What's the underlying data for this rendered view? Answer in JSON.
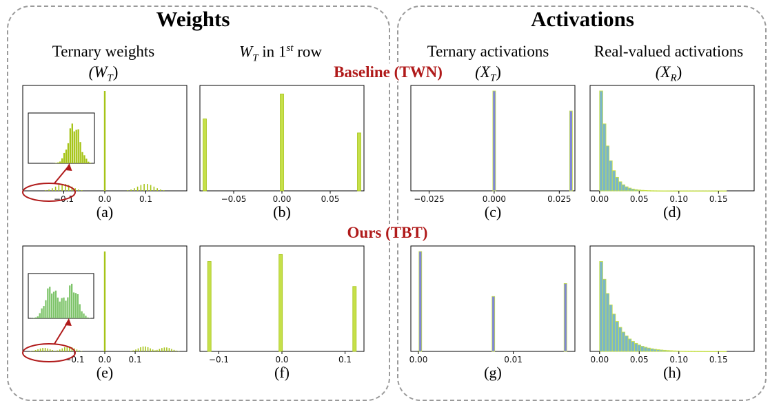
{
  "groups": {
    "weights": "Weights",
    "activations": "Activations"
  },
  "column_titles": {
    "ternary_weights": "Ternary weights",
    "wt_row_prefix": "in 1",
    "wt_row_sup": "st",
    "wt_row_suffix": " row",
    "ternary_activations": "Ternary activations",
    "real_activations": "Real-valued activations"
  },
  "symbols": {
    "WT": "(W",
    "WT_sub": "T",
    "XT": "(X",
    "XT_sub": "T",
    "XR": "(X",
    "XR_sub": "R",
    "close": ")",
    "W_only": "W"
  },
  "row_labels": {
    "baseline": "Baseline  (TWN)",
    "ours": "Ours (TBT)"
  },
  "colors": {
    "weights": "#c6e04a",
    "weights_edge": "#a6c418",
    "act_ternary": "#7f86d6",
    "act_real": "#7ab6c8",
    "ellipse": "#b01a1a",
    "inset": "#7ec46a"
  },
  "chart_data": [
    {
      "id": "a",
      "caption": "(a)",
      "type": "bar",
      "xlim": [
        -0.2,
        0.2
      ],
      "xticks": [
        -0.1,
        0.0,
        0.1
      ],
      "xticklabels": [
        "−0.1",
        "0.0",
        "0.1"
      ],
      "peaks": [
        {
          "x": 0.0,
          "h": 1.0
        }
      ],
      "humps": [
        {
          "center": -0.1,
          "width": 0.02,
          "h": 0.07
        },
        {
          "center": 0.1,
          "width": 0.02,
          "h": 0.07
        }
      ],
      "inset": "unimodal"
    },
    {
      "id": "b",
      "caption": "(b)",
      "type": "bar",
      "xlim": [
        -0.085,
        0.085
      ],
      "xticks": [
        -0.05,
        0.0,
        0.05
      ],
      "xticklabels": [
        "−0.05",
        "0.00",
        "0.05"
      ],
      "bars": [
        {
          "x": -0.08,
          "h": 0.72
        },
        {
          "x": 0.0,
          "h": 0.97
        },
        {
          "x": 0.08,
          "h": 0.58
        }
      ]
    },
    {
      "id": "c",
      "caption": "(c)",
      "type": "bar",
      "xlim": [
        -0.032,
        0.031
      ],
      "xticks": [
        -0.025,
        0.0,
        0.025
      ],
      "xticklabels": [
        "−0.025",
        "0.000",
        "0.025"
      ],
      "bars": [
        {
          "x": 0.0,
          "h": 1.0
        },
        {
          "x": 0.0295,
          "h": 0.8
        }
      ]
    },
    {
      "id": "d",
      "caption": "(d)",
      "type": "bar",
      "xlim": [
        -0.012,
        0.195
      ],
      "xticks": [
        0.0,
        0.05,
        0.1,
        0.15
      ],
      "xticklabels": [
        "0.00",
        "0.05",
        "0.10",
        "0.15"
      ],
      "decay": {
        "h0": 1.0,
        "rate": 100,
        "step": 0.004,
        "from": 0.0,
        "to": 0.16
      }
    },
    {
      "id": "e",
      "caption": "(e)",
      "type": "bar",
      "xlim": [
        -0.27,
        0.27
      ],
      "xticks": [
        -0.1,
        0.0,
        0.1
      ],
      "xticklabels": [
        "−0.1",
        "0.0",
        "0.1"
      ],
      "peaks": [
        {
          "x": 0.0,
          "h": 1.0
        }
      ],
      "humps": [
        {
          "center": -0.2,
          "width": 0.02,
          "h": 0.035
        },
        {
          "center": -0.12,
          "width": 0.02,
          "h": 0.05
        },
        {
          "center": 0.13,
          "width": 0.02,
          "h": 0.05
        },
        {
          "center": 0.2,
          "width": 0.02,
          "h": 0.04
        }
      ],
      "inset": "bimodal"
    },
    {
      "id": "f",
      "caption": "(f)",
      "type": "bar",
      "xlim": [
        -0.13,
        0.13
      ],
      "xticks": [
        -0.1,
        0.0,
        0.1
      ],
      "xticklabels": [
        "−0.1",
        "0.0",
        "0.1"
      ],
      "bars": [
        {
          "x": -0.115,
          "h": 0.9
        },
        {
          "x": -0.002,
          "h": 0.97
        },
        {
          "x": 0.115,
          "h": 0.65
        }
      ]
    },
    {
      "id": "g",
      "caption": "(g)",
      "type": "bar",
      "xlim": [
        -0.0008,
        0.0165
      ],
      "xticks": [
        0.0,
        0.01
      ],
      "xticklabels": [
        "0.00",
        "0.01"
      ],
      "bars": [
        {
          "x": 0.0002,
          "h": 1.0
        },
        {
          "x": 0.0079,
          "h": 0.55
        },
        {
          "x": 0.0155,
          "h": 0.68
        }
      ]
    },
    {
      "id": "h",
      "caption": "(h)",
      "type": "bar",
      "xlim": [
        -0.012,
        0.195
      ],
      "xticks": [
        0.0,
        0.05,
        0.1,
        0.15
      ],
      "xticklabels": [
        "0.00",
        "0.05",
        "0.10",
        "0.15"
      ],
      "decay": {
        "h0": 0.9,
        "rate": 55,
        "step": 0.004,
        "from": 0.0,
        "to": 0.16
      }
    }
  ]
}
